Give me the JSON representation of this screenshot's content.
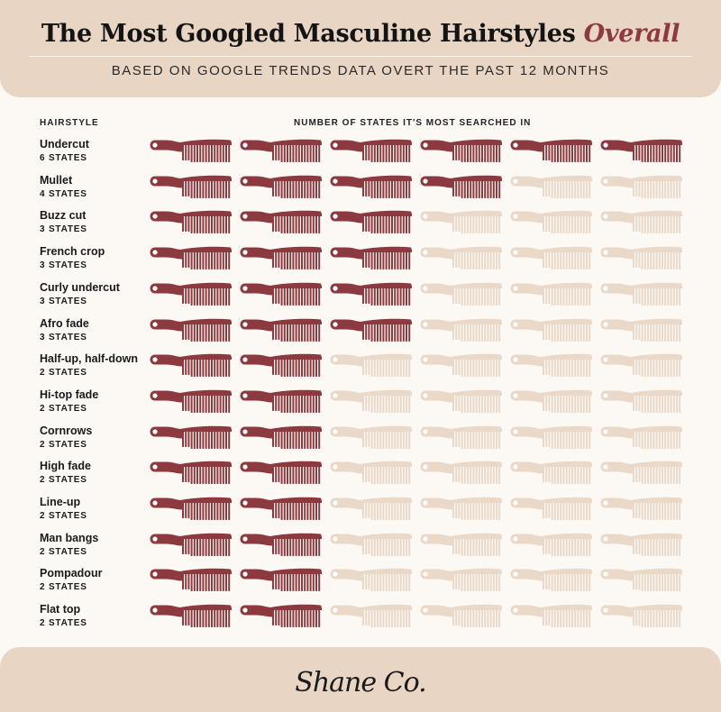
{
  "header": {
    "title_main": "The Most Googled Masculine Hairstyles",
    "title_emphasis": "Overall",
    "subtitle": "BASED ON GOOGLE TRENDS DATA OVERT THE PAST 12 MONTHS"
  },
  "columns": {
    "hairstyle": "HAIRSTYLE",
    "states": "NUMBER OF STATES IT'S MOST SEARCHED IN"
  },
  "colors": {
    "filled": "#8c3a3f",
    "empty": "#ead8c8",
    "band": "#e8d5c4",
    "background": "#fcf9f5",
    "accent": "#8c3a3f"
  },
  "icon": "comb-icon",
  "chart_data": {
    "type": "bar",
    "title": "The Most Googled Masculine Hairstyles Overall",
    "subtitle": "BASED ON GOOGLE TRENDS DATA OVERT THE PAST 12 MONTHS",
    "xlabel": "NUMBER OF STATES IT'S MOST SEARCHED IN",
    "ylabel": "HAIRSTYLE",
    "max_icons": 6,
    "categories": [
      "Undercut",
      "Mullet",
      "Buzz cut",
      "French crop",
      "Curly undercut",
      "Afro fade",
      "Half-up, half-down",
      "Hi-top fade",
      "Cornrows",
      "High fade",
      "Line-up",
      "Man bangs",
      "Pompadour",
      "Flat top"
    ],
    "values": [
      6,
      4,
      3,
      3,
      3,
      3,
      2,
      2,
      2,
      2,
      2,
      2,
      2,
      2
    ],
    "value_labels": [
      "6 STATES",
      "4 STATES",
      "3 STATES",
      "3 STATES",
      "3 STATES",
      "3 STATES",
      "2 STATES",
      "2 STATES",
      "2 STATES",
      "2 STATES",
      "2 STATES",
      "2 STATES",
      "2 STATES",
      "2 STATES"
    ]
  },
  "footer": {
    "logo": "Shane Co."
  }
}
